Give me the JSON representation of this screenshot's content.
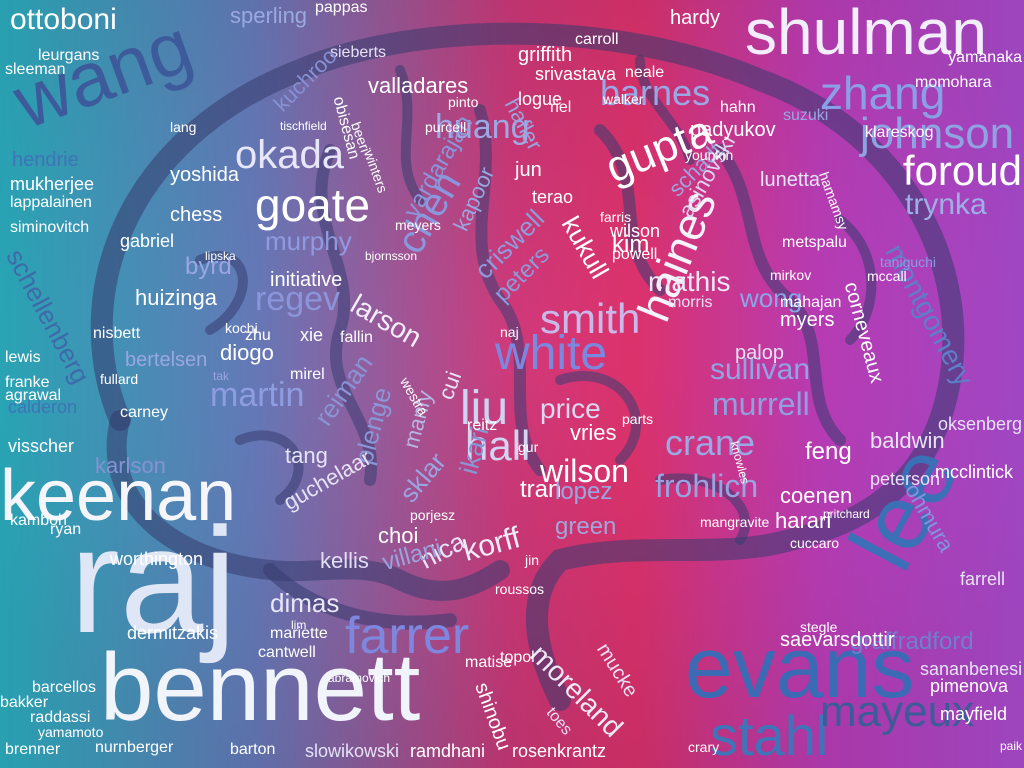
{
  "background": {
    "colors": [
      "#2fb4c9",
      "#7a6fb8",
      "#e8336d",
      "#c23fc0",
      "#b64fd6"
    ]
  },
  "brain_outline_color": "#3a3f77",
  "words": [
    {
      "text": "raj",
      "color": "#dfe6f5"
    },
    {
      "text": "bennett",
      "color": "#f2f4fb"
    },
    {
      "text": "keenan",
      "color": "#f4f6fc"
    },
    {
      "text": "evans",
      "color": "#3a6bb4"
    },
    {
      "text": "lee",
      "color": "#3b6fb6"
    },
    {
      "text": "shulman",
      "color": "#f3eefc"
    },
    {
      "text": "wang",
      "color": "#3d5a9a"
    },
    {
      "text": "white",
      "color": "#7b88e0"
    },
    {
      "text": "stahl",
      "color": "#3f74b8"
    },
    {
      "text": "mayeux",
      "color": "#3c5b98"
    },
    {
      "text": "farrer",
      "color": "#7e86de"
    },
    {
      "text": "zhang",
      "color": "#8aa0e6"
    },
    {
      "text": "johnson",
      "color": "#8fa3e2"
    },
    {
      "text": "foroud",
      "color": "#ffffff"
    },
    {
      "text": "ottoboni",
      "color": "#ffffff"
    },
    {
      "text": "goate",
      "color": "#ffffff"
    },
    {
      "text": "okada",
      "color": "#e8e6fa"
    },
    {
      "text": "gupta",
      "color": "#ffffff"
    },
    {
      "text": "haines",
      "color": "#f5f3fc"
    },
    {
      "text": "chen",
      "color": "#8b96dd"
    },
    {
      "text": "smith",
      "color": "#c9b9ea"
    },
    {
      "text": "liu",
      "color": "#cdd3f0"
    },
    {
      "text": "hall",
      "color": "#d2d4f0"
    },
    {
      "text": "wilson",
      "color": "#ffffff"
    },
    {
      "text": "crane",
      "color": "#9aa8e3"
    },
    {
      "text": "frohlich",
      "color": "#9aa3e2"
    },
    {
      "text": "murrell",
      "color": "#8f9fe0"
    },
    {
      "text": "sullivan",
      "color": "#8fa4e3"
    },
    {
      "text": "barnes",
      "color": "#9aa7e5"
    },
    {
      "text": "huang",
      "color": "#9ea9e4"
    },
    {
      "text": "regev",
      "color": "#8b95d9"
    },
    {
      "text": "martin",
      "color": "#8e9de0"
    },
    {
      "text": "schellenberg",
      "color": "#3f6aa8"
    },
    {
      "text": "montgomery",
      "color": "#5d7fc8"
    },
    {
      "text": "trynka",
      "color": "#9db0e6"
    },
    {
      "text": "dimas",
      "color": "#e8e6fa"
    },
    {
      "text": "moreland",
      "color": "#eeeaf8"
    },
    {
      "text": "korff",
      "color": "#f0ecfa"
    },
    {
      "text": "mathis",
      "color": "#ece8f8"
    },
    {
      "text": "wong",
      "color": "#8aa6e6"
    },
    {
      "text": "larson",
      "color": "#f3eefc"
    },
    {
      "text": "criswell",
      "color": "#8d9bdc"
    },
    {
      "text": "peters",
      "color": "#8b9ad9"
    },
    {
      "text": "kukull",
      "color": "#ffffff"
    },
    {
      "text": "schadt",
      "color": "#9aa6e0"
    },
    {
      "text": "asinovski",
      "color": "#dcd6f2"
    },
    {
      "text": "kim",
      "color": "#ffffff"
    },
    {
      "text": "price",
      "color": "#dcd8f2"
    },
    {
      "text": "vries",
      "color": "#ffffff"
    },
    {
      "text": "green",
      "color": "#9fa6dc"
    },
    {
      "text": "tran",
      "color": "#ffffff"
    },
    {
      "text": "lopez",
      "color": "#9aa6df"
    },
    {
      "text": "nica",
      "color": "#e9e4f8"
    },
    {
      "text": "sklar",
      "color": "#9aa4de"
    },
    {
      "text": "villani",
      "color": "#9aa3dd"
    },
    {
      "text": "kellis",
      "color": "#e2def6"
    },
    {
      "text": "plenge",
      "color": "#8a96d6"
    },
    {
      "text": "reiman",
      "color": "#8994d4"
    },
    {
      "text": "manly",
      "color": "#b6b6e4"
    },
    {
      "text": "ikari",
      "color": "#8a95d6"
    },
    {
      "text": "cui",
      "color": "#e6e2f6"
    },
    {
      "text": "tang",
      "color": "#e7e4f6"
    },
    {
      "text": "guchelaar",
      "color": "#e5e2f5"
    },
    {
      "text": "choi",
      "color": "#ffffff"
    },
    {
      "text": "feng",
      "color": "#ffffff"
    },
    {
      "text": "baldwin",
      "color": "#e8e4f8"
    },
    {
      "text": "peterson",
      "color": "#e6e1f6"
    },
    {
      "text": "coenen",
      "color": "#ffffff"
    },
    {
      "text": "harari",
      "color": "#ffffff"
    },
    {
      "text": "palop",
      "color": "#e6e2f6"
    },
    {
      "text": "myers",
      "color": "#ffffff"
    },
    {
      "text": "corneveaux",
      "color": "#ffffff"
    },
    {
      "text": "ohmura",
      "color": "#7f95de"
    },
    {
      "text": "graffradford",
      "color": "#6f7fce"
    },
    {
      "text": "saevarsdottir",
      "color": "#ffffff"
    },
    {
      "text": "sananbenesi",
      "color": "#e6e2f7"
    },
    {
      "text": "pimenova",
      "color": "#ffffff"
    },
    {
      "text": "mayfield",
      "color": "#ffffff"
    },
    {
      "text": "farrell",
      "color": "#e6e2f7"
    },
    {
      "text": "mcclintick",
      "color": "#ffffff"
    },
    {
      "text": "oksenberg",
      "color": "#e6e2f7"
    },
    {
      "text": "lunetta",
      "color": "#e8e4f8"
    },
    {
      "text": "padyukov",
      "color": "#ffffff"
    },
    {
      "text": "hahn",
      "color": "#ffffff"
    },
    {
      "text": "klareskog",
      "color": "#ffffff"
    },
    {
      "text": "momohara",
      "color": "#ffffff"
    },
    {
      "text": "yamanaka",
      "color": "#ffffff"
    },
    {
      "text": "hardy",
      "color": "#ffffff"
    },
    {
      "text": "neale",
      "color": "#ffffff"
    },
    {
      "text": "carroll",
      "color": "#ffffff"
    },
    {
      "text": "griffith",
      "color": "#ffffff"
    },
    {
      "text": "srivastava",
      "color": "#ffffff"
    },
    {
      "text": "logue",
      "color": "#ffffff"
    },
    {
      "text": "valladares",
      "color": "#ffffff"
    },
    {
      "text": "sperling",
      "color": "#9aa9df"
    },
    {
      "text": "pappas",
      "color": "#ffffff"
    },
    {
      "text": "sieberts",
      "color": "#e6e2f6"
    },
    {
      "text": "obisesan",
      "color": "#ffffff"
    },
    {
      "text": "hafler",
      "color": "#9aa4df"
    },
    {
      "text": "riel",
      "color": "#ffffff"
    },
    {
      "text": "jun",
      "color": "#ffffff"
    },
    {
      "text": "terao",
      "color": "#ffffff"
    },
    {
      "text": "vardarajan",
      "color": "#8a96d8"
    },
    {
      "text": "kapoor",
      "color": "#9aa4de"
    },
    {
      "text": "kuchroo",
      "color": "#8690d3"
    },
    {
      "text": "yoshida",
      "color": "#ffffff"
    },
    {
      "text": "chess",
      "color": "#ffffff"
    },
    {
      "text": "gabriel",
      "color": "#ffffff"
    },
    {
      "text": "byrd",
      "color": "#9aa7e2"
    },
    {
      "text": "murphy",
      "color": "#8f9be0"
    },
    {
      "text": "initiative",
      "color": "#ffffff"
    },
    {
      "text": "huizinga",
      "color": "#ffffff"
    },
    {
      "text": "nisbett",
      "color": "#ffffff"
    },
    {
      "text": "diogo",
      "color": "#ffffff"
    },
    {
      "text": "zhu",
      "color": "#ffffff"
    },
    {
      "text": "xie",
      "color": "#ffffff"
    },
    {
      "text": "fallin",
      "color": "#ffffff"
    },
    {
      "text": "bertelsen",
      "color": "#9aa6de"
    },
    {
      "text": "fullard",
      "color": "#ffffff"
    },
    {
      "text": "carney",
      "color": "#ffffff"
    },
    {
      "text": "karlson",
      "color": "#8692d4"
    },
    {
      "text": "mukherjee",
      "color": "#ffffff"
    },
    {
      "text": "lappalainen",
      "color": "#ffffff"
    },
    {
      "text": "siminovitch",
      "color": "#ffffff"
    },
    {
      "text": "leurgans",
      "color": "#ffffff"
    },
    {
      "text": "sleeman",
      "color": "#ffffff"
    },
    {
      "text": "hendrie",
      "color": "#3e74b6"
    },
    {
      "text": "lewis",
      "color": "#ffffff"
    },
    {
      "text": "franke",
      "color": "#ffffff"
    },
    {
      "text": "agrawal",
      "color": "#ffffff"
    },
    {
      "text": "calderon",
      "color": "#3e74b6"
    },
    {
      "text": "visscher",
      "color": "#ffffff"
    },
    {
      "text": "kamboh",
      "color": "#ffffff"
    },
    {
      "text": "ryan",
      "color": "#ffffff"
    },
    {
      "text": "worthington",
      "color": "#ffffff"
    },
    {
      "text": "dermitzakis",
      "color": "#ffffff"
    },
    {
      "text": "mariette",
      "color": "#ffffff"
    },
    {
      "text": "cantwell",
      "color": "#ffffff"
    },
    {
      "text": "barcellos",
      "color": "#ffffff"
    },
    {
      "text": "bakker",
      "color": "#ffffff"
    },
    {
      "text": "raddassi",
      "color": "#ffffff"
    },
    {
      "text": "yamamoto",
      "color": "#ffffff"
    },
    {
      "text": "brenner",
      "color": "#ffffff"
    },
    {
      "text": "barton",
      "color": "#ffffff"
    },
    {
      "text": "slowikowski",
      "color": "#e6e2f6"
    },
    {
      "text": "ramdhani",
      "color": "#ffffff"
    },
    {
      "text": "rosenkrantz",
      "color": "#ffffff"
    },
    {
      "text": "nurnberger",
      "color": "#ffffff"
    },
    {
      "text": "topol",
      "color": "#ffffff"
    },
    {
      "text": "matise",
      "color": "#ffffff"
    },
    {
      "text": "shinobu",
      "color": "#ffffff"
    },
    {
      "text": "mucke",
      "color": "#e6e2f6"
    },
    {
      "text": "toes",
      "color": "#e6e2f6"
    },
    {
      "text": "crary",
      "color": "#ffffff"
    },
    {
      "text": "wilson",
      "color": "#ffffff"
    },
    {
      "text": "powell",
      "color": "#ffffff"
    },
    {
      "text": "morris",
      "color": "#e6e2f6"
    },
    {
      "text": "naj",
      "color": "#ffffff"
    },
    {
      "text": "reitz",
      "color": "#ffffff"
    },
    {
      "text": "parts",
      "color": "#ffffff"
    },
    {
      "text": "gur",
      "color": "#ffffff"
    },
    {
      "text": "farris",
      "color": "#ffffff"
    },
    {
      "text": "metspalu",
      "color": "#ffffff"
    },
    {
      "text": "suzuki",
      "color": "#9aa6e2"
    },
    {
      "text": "younkin",
      "color": "#ffffff"
    },
    {
      "text": "walker",
      "color": "#ffffff"
    },
    {
      "text": "pinto",
      "color": "#ffffff"
    },
    {
      "text": "purcell",
      "color": "#ffffff"
    },
    {
      "text": "lang",
      "color": "#ffffff"
    },
    {
      "text": "tischfield",
      "color": "#ffffff"
    },
    {
      "text": "beeri",
      "color": "#ffffff"
    },
    {
      "text": "winters",
      "color": "#ffffff"
    },
    {
      "text": "lipska",
      "color": "#ffffff"
    },
    {
      "text": "kochi",
      "color": "#ffffff"
    },
    {
      "text": "mirel",
      "color": "#ffffff"
    },
    {
      "text": "tak",
      "color": "#9aa4de"
    },
    {
      "text": "westra",
      "color": "#ffffff"
    },
    {
      "text": "knowles",
      "color": "#ffffff"
    },
    {
      "text": "mangravite",
      "color": "#ffffff"
    },
    {
      "text": "cuccaro",
      "color": "#ffffff"
    },
    {
      "text": "pritchard",
      "color": "#ffffff"
    },
    {
      "text": "mirkov",
      "color": "#ffffff"
    },
    {
      "text": "mccall",
      "color": "#ffffff"
    },
    {
      "text": "taniguchi",
      "color": "#8b9be0"
    },
    {
      "text": "hamamsy",
      "color": "#ffffff"
    },
    {
      "text": "mahajan",
      "color": "#ffffff"
    },
    {
      "text": "bjornsson",
      "color": "#ffffff"
    },
    {
      "text": "meyers",
      "color": "#ffffff"
    },
    {
      "text": "porjesz",
      "color": "#ffffff"
    },
    {
      "text": "roussos",
      "color": "#ffffff"
    },
    {
      "text": "jin",
      "color": "#ffffff"
    },
    {
      "text": "stegle",
      "color": "#ffffff"
    },
    {
      "text": "paik",
      "color": "#ffffff"
    },
    {
      "text": "lim",
      "color": "#ffffff"
    },
    {
      "text": "abramovich",
      "color": "#ffffff"
    }
  ]
}
